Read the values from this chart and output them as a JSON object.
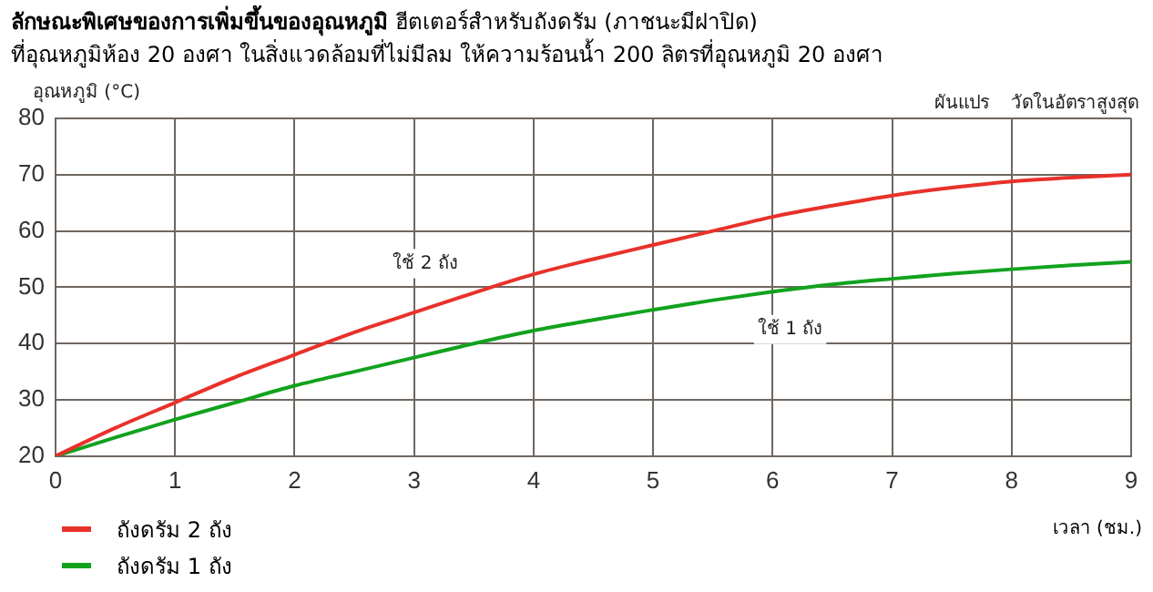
{
  "chart_data": {
    "type": "line",
    "title": "ลักษณะพิเศษของการเพิ่มขึ้นของอุณหภูมิ",
    "subtitle": "ฮีตเตอร์สำหรับถังดรัม (ภาชนะมีฝาปิด)",
    "annotations": [
      "ที่อุณหภูมิห้อง 20 องศา   ในสิ่งแวดล้อมที่ไม่มีลม   ให้ความร้อนน้ำ 200 ลิตรที่อุณหภูมิ 20 องศา",
      "ผันแปร",
      "วัดในอัตราสูงสุด",
      "ใช้ 2 ถัง",
      "ใช้ 1 ถัง"
    ],
    "xlabel": "เวลา (ชม.)",
    "ylabel": "อุณหภูมิ (°C)",
    "x": [
      0,
      0.5,
      1,
      1.5,
      2,
      2.5,
      3,
      3.5,
      4,
      4.5,
      5,
      5.5,
      6,
      6.5,
      7,
      7.5,
      8,
      8.5,
      9
    ],
    "series": [
      {
        "name": "ถังดรัม 2 ถัง",
        "color": "#e8312a",
        "values": [
          20,
          25,
          29.5,
          34,
          38,
          42,
          45.5,
          49,
          52.3,
          55,
          57.5,
          60,
          62.5,
          64.5,
          66.3,
          67.7,
          68.8,
          69.5,
          70
        ]
      },
      {
        "name": "ถังดรัม 1 ถัง",
        "color": "#12a21e",
        "values": [
          20,
          23.3,
          26.5,
          29.5,
          32.5,
          35,
          37.5,
          40,
          42.3,
          44.2,
          46,
          47.7,
          49.2,
          50.5,
          51.5,
          52.4,
          53.2,
          53.9,
          54.5
        ]
      }
    ],
    "xlim": [
      0,
      9
    ],
    "xticks": [
      0,
      1,
      2,
      3,
      4,
      5,
      6,
      7,
      8,
      9
    ],
    "ylim": [
      20,
      80
    ],
    "yticks": [
      20,
      30,
      40,
      50,
      60,
      70,
      80
    ],
    "grid": true,
    "legend": "bottom left",
    "marker": "none",
    "line_style": "solid"
  }
}
